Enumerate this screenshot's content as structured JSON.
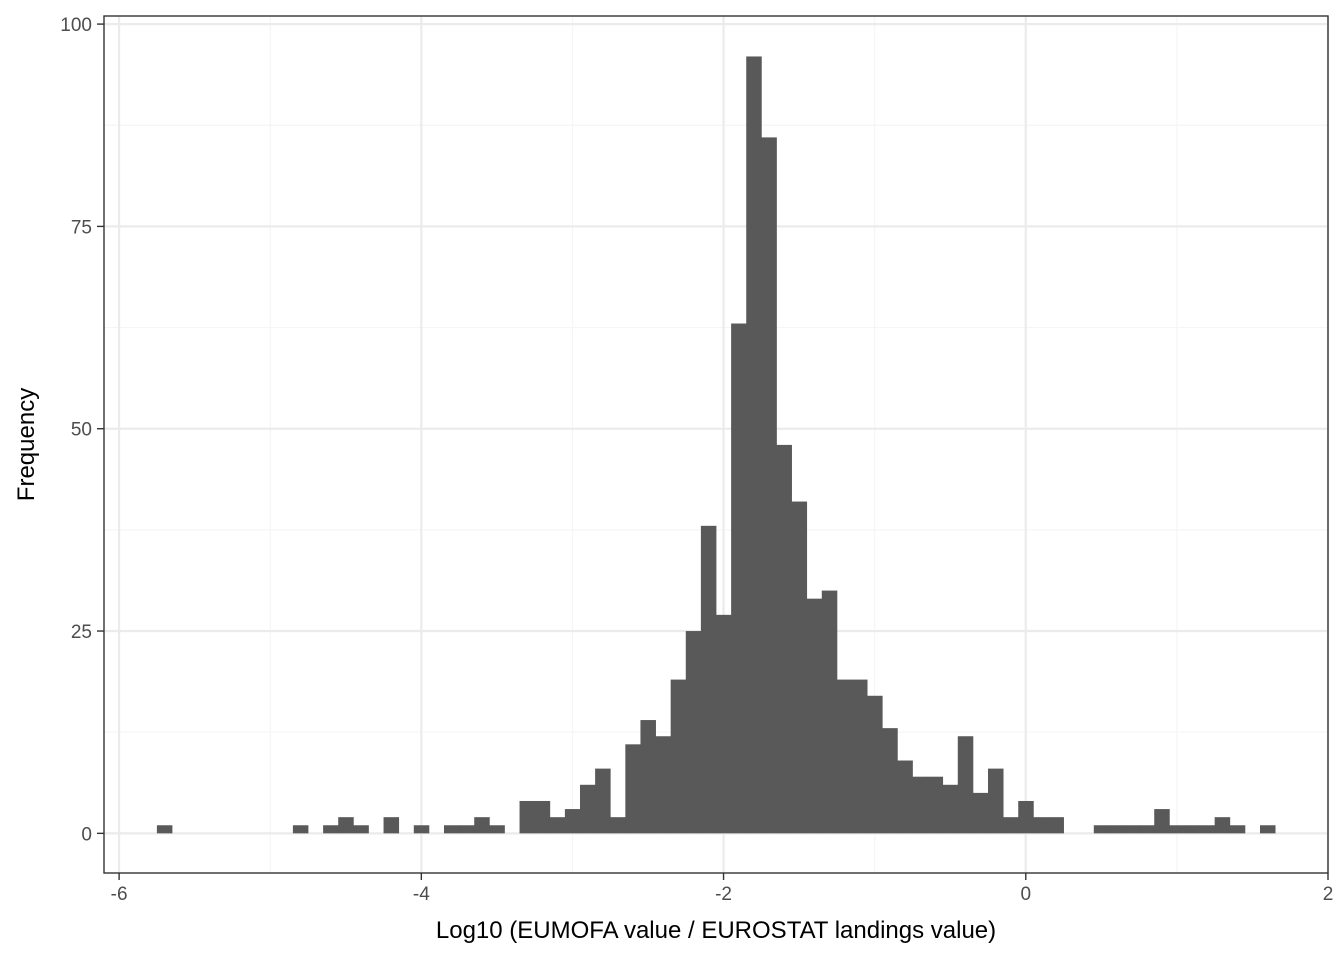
{
  "chart_data": {
    "type": "bar",
    "xlabel": "Log10 (EUMOFA value / EUROSTAT landings value)",
    "ylabel": "Frequency",
    "xlim": [
      -6.1,
      2.0
    ],
    "ylim": [
      -4.9,
      101
    ],
    "x_ticks": [
      -6,
      -4,
      -2,
      0,
      2
    ],
    "x_tick_labels": [
      "-6",
      "-4",
      "-2",
      "0",
      "2"
    ],
    "y_ticks": [
      0,
      25,
      50,
      75,
      100
    ],
    "y_tick_labels": [
      "0",
      "25",
      "50",
      "75",
      "100"
    ],
    "grid": true,
    "bin_width": 0.1,
    "bin_start": -5.75,
    "counts": [
      1,
      0,
      0,
      0,
      0,
      0,
      0,
      0,
      0,
      1,
      0,
      1,
      2,
      1,
      0,
      2,
      0,
      1,
      0,
      1,
      1,
      2,
      1,
      0,
      4,
      4,
      2,
      3,
      6,
      8,
      2,
      11,
      14,
      12,
      19,
      25,
      38,
      27,
      63,
      96,
      86,
      48,
      41,
      29,
      30,
      19,
      19,
      17,
      13,
      9,
      7,
      7,
      6,
      12,
      5,
      8,
      2,
      4,
      2,
      2,
      0,
      0,
      1,
      1,
      1,
      1,
      3,
      1,
      1,
      1,
      2,
      1,
      0,
      1
    ],
    "colors": {
      "bar": "#595959",
      "grid_major": "#ebebeb",
      "grid_minor": "#f5f5f5",
      "panel_border": "#333333"
    }
  }
}
